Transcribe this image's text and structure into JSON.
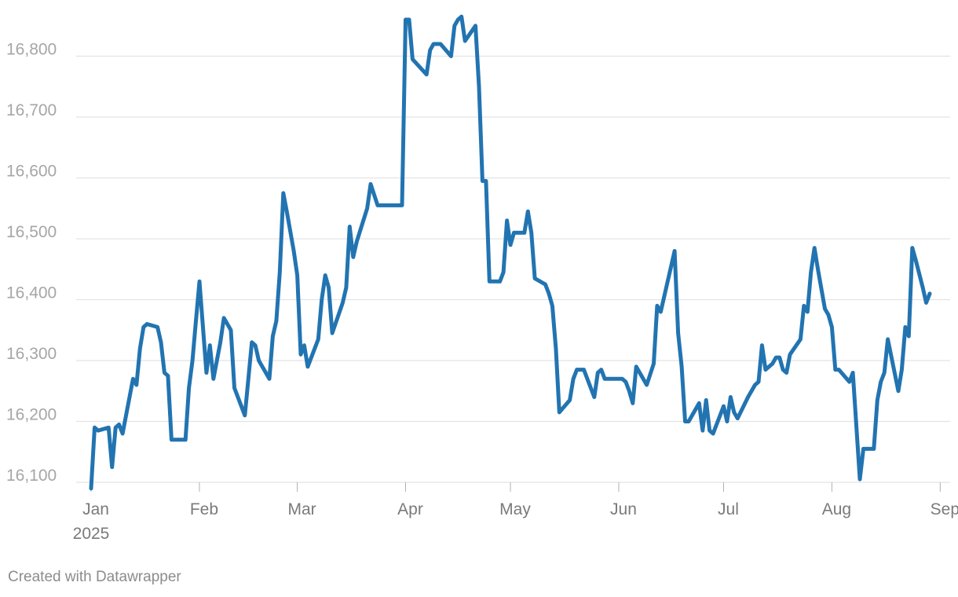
{
  "chart_data": {
    "type": "line",
    "ylim": [
      16100,
      16900
    ],
    "y_ticks": [
      "16,100",
      "16,200",
      "16,300",
      "16,400",
      "16,500",
      "16,600",
      "16,700",
      "16,800"
    ],
    "y_tick_values": [
      16100,
      16200,
      16300,
      16400,
      16500,
      16600,
      16700,
      16800
    ],
    "x_ticks": [
      {
        "label": "Jan",
        "sub": "2025",
        "date": "2025-01-01"
      },
      {
        "label": "Feb",
        "date": "2025-02-01"
      },
      {
        "label": "Mar",
        "date": "2025-03-01"
      },
      {
        "label": "Apr",
        "date": "2025-04-01"
      },
      {
        "label": "May",
        "date": "2025-05-01"
      },
      {
        "label": "Jun",
        "date": "2025-06-01"
      },
      {
        "label": "Jul",
        "date": "2025-07-01"
      },
      {
        "label": "Aug",
        "date": "2025-08-01"
      },
      {
        "label": "Sep",
        "date": "2025-09-01"
      }
    ],
    "grid": true,
    "series": [
      {
        "color": "#2274b1",
        "points": [
          [
            "2025-01-01",
            16090
          ],
          [
            "2025-01-02",
            16190
          ],
          [
            "2025-01-03",
            16185
          ],
          [
            "2025-01-06",
            16190
          ],
          [
            "2025-01-07",
            16125
          ],
          [
            "2025-01-08",
            16190
          ],
          [
            "2025-01-09",
            16195
          ],
          [
            "2025-01-10",
            16180
          ],
          [
            "2025-01-13",
            16270
          ],
          [
            "2025-01-14",
            16260
          ],
          [
            "2025-01-15",
            16320
          ],
          [
            "2025-01-16",
            16355
          ],
          [
            "2025-01-17",
            16360
          ],
          [
            "2025-01-20",
            16355
          ],
          [
            "2025-01-21",
            16330
          ],
          [
            "2025-01-22",
            16280
          ],
          [
            "2025-01-23",
            16275
          ],
          [
            "2025-01-24",
            16170
          ],
          [
            "2025-01-27",
            16170
          ],
          [
            "2025-01-28",
            16170
          ],
          [
            "2025-01-29",
            16255
          ],
          [
            "2025-01-30",
            16300
          ],
          [
            "2025-01-31",
            16365
          ],
          [
            "2025-02-01",
            16430
          ],
          [
            "2025-02-03",
            16280
          ],
          [
            "2025-02-04",
            16325
          ],
          [
            "2025-02-05",
            16270
          ],
          [
            "2025-02-06",
            16300
          ],
          [
            "2025-02-07",
            16330
          ],
          [
            "2025-02-08",
            16370
          ],
          [
            "2025-02-10",
            16350
          ],
          [
            "2025-02-11",
            16255
          ],
          [
            "2025-02-14",
            16210
          ],
          [
            "2025-02-15",
            16270
          ],
          [
            "2025-02-16",
            16330
          ],
          [
            "2025-02-17",
            16325
          ],
          [
            "2025-02-18",
            16300
          ],
          [
            "2025-02-21",
            16270
          ],
          [
            "2025-02-22",
            16340
          ],
          [
            "2025-02-23",
            16365
          ],
          [
            "2025-02-24",
            16445
          ],
          [
            "2025-02-25",
            16575
          ],
          [
            "2025-02-26",
            16545
          ],
          [
            "2025-02-28",
            16480
          ],
          [
            "2025-03-01",
            16440
          ],
          [
            "2025-03-02",
            16310
          ],
          [
            "2025-03-03",
            16325
          ],
          [
            "2025-03-04",
            16290
          ],
          [
            "2025-03-07",
            16335
          ],
          [
            "2025-03-08",
            16400
          ],
          [
            "2025-03-09",
            16440
          ],
          [
            "2025-03-10",
            16420
          ],
          [
            "2025-03-11",
            16345
          ],
          [
            "2025-03-14",
            16395
          ],
          [
            "2025-03-15",
            16420
          ],
          [
            "2025-03-16",
            16520
          ],
          [
            "2025-03-17",
            16470
          ],
          [
            "2025-03-18",
            16495
          ],
          [
            "2025-03-21",
            16550
          ],
          [
            "2025-03-22",
            16590
          ],
          [
            "2025-03-24",
            16555
          ],
          [
            "2025-03-31",
            16555
          ],
          [
            "2025-04-01",
            16860
          ],
          [
            "2025-04-02",
            16860
          ],
          [
            "2025-04-03",
            16795
          ],
          [
            "2025-04-07",
            16770
          ],
          [
            "2025-04-08",
            16810
          ],
          [
            "2025-04-09",
            16820
          ],
          [
            "2025-04-11",
            16820
          ],
          [
            "2025-04-14",
            16800
          ],
          [
            "2025-04-15",
            16850
          ],
          [
            "2025-04-16",
            16860
          ],
          [
            "2025-04-17",
            16865
          ],
          [
            "2025-04-18",
            16825
          ],
          [
            "2025-04-21",
            16850
          ],
          [
            "2025-04-22",
            16750
          ],
          [
            "2025-04-23",
            16595
          ],
          [
            "2025-04-24",
            16595
          ],
          [
            "2025-04-25",
            16430
          ],
          [
            "2025-04-28",
            16430
          ],
          [
            "2025-04-29",
            16445
          ],
          [
            "2025-04-30",
            16530
          ],
          [
            "2025-05-01",
            16490
          ],
          [
            "2025-05-02",
            16510
          ],
          [
            "2025-05-05",
            16510
          ],
          [
            "2025-05-06",
            16545
          ],
          [
            "2025-05-07",
            16510
          ],
          [
            "2025-05-08",
            16435
          ],
          [
            "2025-05-11",
            16425
          ],
          [
            "2025-05-12",
            16410
          ],
          [
            "2025-05-13",
            16390
          ],
          [
            "2025-05-14",
            16320
          ],
          [
            "2025-05-15",
            16215
          ],
          [
            "2025-05-18",
            16235
          ],
          [
            "2025-05-19",
            16270
          ],
          [
            "2025-05-20",
            16285
          ],
          [
            "2025-05-22",
            16285
          ],
          [
            "2025-05-25",
            16240
          ],
          [
            "2025-05-26",
            16280
          ],
          [
            "2025-05-27",
            16285
          ],
          [
            "2025-05-28",
            16270
          ],
          [
            "2025-06-02",
            16270
          ],
          [
            "2025-06-03",
            16265
          ],
          [
            "2025-06-04",
            16250
          ],
          [
            "2025-06-05",
            16230
          ],
          [
            "2025-06-06",
            16290
          ],
          [
            "2025-06-09",
            16260
          ],
          [
            "2025-06-11",
            16295
          ],
          [
            "2025-06-12",
            16390
          ],
          [
            "2025-06-13",
            16380
          ],
          [
            "2025-06-17",
            16480
          ],
          [
            "2025-06-18",
            16345
          ],
          [
            "2025-06-19",
            16290
          ],
          [
            "2025-06-20",
            16200
          ],
          [
            "2025-06-21",
            16200
          ],
          [
            "2025-06-24",
            16230
          ],
          [
            "2025-06-25",
            16185
          ],
          [
            "2025-06-26",
            16235
          ],
          [
            "2025-06-27",
            16185
          ],
          [
            "2025-06-28",
            16180
          ],
          [
            "2025-07-01",
            16225
          ],
          [
            "2025-07-02",
            16200
          ],
          [
            "2025-07-03",
            16240
          ],
          [
            "2025-07-04",
            16215
          ],
          [
            "2025-07-05",
            16205
          ],
          [
            "2025-07-08",
            16240
          ],
          [
            "2025-07-10",
            16260
          ],
          [
            "2025-07-11",
            16265
          ],
          [
            "2025-07-12",
            16325
          ],
          [
            "2025-07-13",
            16285
          ],
          [
            "2025-07-15",
            16295
          ],
          [
            "2025-07-16",
            16305
          ],
          [
            "2025-07-17",
            16305
          ],
          [
            "2025-07-18",
            16285
          ],
          [
            "2025-07-19",
            16280
          ],
          [
            "2025-07-20",
            16310
          ],
          [
            "2025-07-23",
            16335
          ],
          [
            "2025-07-24",
            16390
          ],
          [
            "2025-07-25",
            16380
          ],
          [
            "2025-07-26",
            16445
          ],
          [
            "2025-07-27",
            16485
          ],
          [
            "2025-07-28",
            16450
          ],
          [
            "2025-07-30",
            16385
          ],
          [
            "2025-07-31",
            16375
          ],
          [
            "2025-08-01",
            16355
          ],
          [
            "2025-08-02",
            16285
          ],
          [
            "2025-08-03",
            16285
          ],
          [
            "2025-08-06",
            16265
          ],
          [
            "2025-08-07",
            16280
          ],
          [
            "2025-08-09",
            16105
          ],
          [
            "2025-08-10",
            16155
          ],
          [
            "2025-08-13",
            16155
          ],
          [
            "2025-08-14",
            16235
          ],
          [
            "2025-08-15",
            16265
          ],
          [
            "2025-08-16",
            16280
          ],
          [
            "2025-08-17",
            16335
          ],
          [
            "2025-08-20",
            16250
          ],
          [
            "2025-08-21",
            16285
          ],
          [
            "2025-08-22",
            16355
          ],
          [
            "2025-08-23",
            16340
          ],
          [
            "2025-08-24",
            16485
          ],
          [
            "2025-08-25",
            16465
          ],
          [
            "2025-08-27",
            16420
          ],
          [
            "2025-08-28",
            16395
          ],
          [
            "2025-08-29",
            16410
          ]
        ]
      }
    ]
  },
  "footer": {
    "credit": "Created with Datawrapper"
  }
}
